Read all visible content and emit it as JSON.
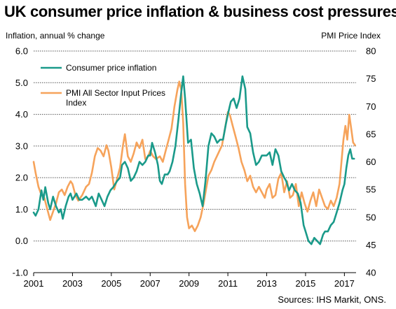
{
  "chart_data": {
    "type": "line",
    "title": "UK consumer price inflation & business cost pressures",
    "ylabel": "Inflation, annual % change",
    "ylabel_right": "PMI Price Index",
    "source": "Sources: IHS Markit, ONS.",
    "grid": true,
    "legend_position": "top-left",
    "x_ticks": [
      "2001",
      "2003",
      "2005",
      "2007",
      "2009",
      "2011",
      "2013",
      "2015",
      "2017"
    ],
    "y_ticks_left": [
      "6.0",
      "5.0",
      "4.0",
      "3.0",
      "2.0",
      "1.0",
      "0.0",
      "-1.0"
    ],
    "y_ticks_right": [
      "80",
      "75",
      "70",
      "65",
      "60",
      "55",
      "50",
      "45",
      "40"
    ],
    "ylim_left": [
      -1,
      6
    ],
    "ylim_right": [
      40,
      80
    ],
    "xlim": [
      2001.0,
      2017.6
    ],
    "series": [
      {
        "name": "Consumer price inflation",
        "axis": "left",
        "color": "#1a9a8a",
        "points": [
          [
            2001.0,
            0.9
          ],
          [
            2001.1,
            0.8
          ],
          [
            2001.25,
            1.0
          ],
          [
            2001.4,
            1.6
          ],
          [
            2001.5,
            1.3
          ],
          [
            2001.6,
            1.7
          ],
          [
            2001.75,
            1.2
          ],
          [
            2001.85,
            1.0
          ],
          [
            2002.0,
            1.4
          ],
          [
            2002.15,
            1.1
          ],
          [
            2002.3,
            0.9
          ],
          [
            2002.4,
            1.0
          ],
          [
            2002.5,
            0.7
          ],
          [
            2002.65,
            1.1
          ],
          [
            2002.8,
            1.4
          ],
          [
            2002.9,
            1.5
          ],
          [
            2003.0,
            1.3
          ],
          [
            2003.2,
            1.5
          ],
          [
            2003.35,
            1.3
          ],
          [
            2003.5,
            1.3
          ],
          [
            2003.7,
            1.4
          ],
          [
            2003.85,
            1.3
          ],
          [
            2004.0,
            1.4
          ],
          [
            2004.2,
            1.1
          ],
          [
            2004.35,
            1.5
          ],
          [
            2004.5,
            1.3
          ],
          [
            2004.65,
            1.1
          ],
          [
            2004.8,
            1.4
          ],
          [
            2004.95,
            1.6
          ],
          [
            2005.1,
            1.7
          ],
          [
            2005.3,
            1.9
          ],
          [
            2005.45,
            2.0
          ],
          [
            2005.55,
            2.4
          ],
          [
            2005.7,
            2.5
          ],
          [
            2005.85,
            2.3
          ],
          [
            2006.0,
            1.9
          ],
          [
            2006.15,
            2.0
          ],
          [
            2006.3,
            2.2
          ],
          [
            2006.45,
            2.5
          ],
          [
            2006.6,
            2.4
          ],
          [
            2006.75,
            2.5
          ],
          [
            2006.9,
            2.7
          ],
          [
            2007.0,
            2.7
          ],
          [
            2007.1,
            3.1
          ],
          [
            2007.25,
            2.8
          ],
          [
            2007.4,
            2.4
          ],
          [
            2007.5,
            1.9
          ],
          [
            2007.6,
            1.8
          ],
          [
            2007.75,
            2.1
          ],
          [
            2007.9,
            2.1
          ],
          [
            2008.0,
            2.2
          ],
          [
            2008.15,
            2.5
          ],
          [
            2008.3,
            3.0
          ],
          [
            2008.45,
            3.8
          ],
          [
            2008.6,
            4.7
          ],
          [
            2008.7,
            5.2
          ],
          [
            2008.8,
            4.5
          ],
          [
            2008.95,
            3.1
          ],
          [
            2009.1,
            3.2
          ],
          [
            2009.25,
            2.3
          ],
          [
            2009.4,
            1.8
          ],
          [
            2009.55,
            1.5
          ],
          [
            2009.7,
            1.1
          ],
          [
            2009.85,
            1.9
          ],
          [
            2010.0,
            3.0
          ],
          [
            2010.15,
            3.4
          ],
          [
            2010.3,
            3.3
          ],
          [
            2010.45,
            3.1
          ],
          [
            2010.6,
            3.2
          ],
          [
            2010.75,
            3.2
          ],
          [
            2010.9,
            3.7
          ],
          [
            2011.0,
            4.0
          ],
          [
            2011.15,
            4.4
          ],
          [
            2011.3,
            4.5
          ],
          [
            2011.45,
            4.2
          ],
          [
            2011.6,
            4.5
          ],
          [
            2011.75,
            5.2
          ],
          [
            2011.9,
            4.8
          ],
          [
            2012.0,
            3.6
          ],
          [
            2012.15,
            3.4
          ],
          [
            2012.3,
            2.8
          ],
          [
            2012.45,
            2.4
          ],
          [
            2012.6,
            2.5
          ],
          [
            2012.75,
            2.7
          ],
          [
            2012.9,
            2.7
          ],
          [
            2013.0,
            2.7
          ],
          [
            2013.15,
            2.8
          ],
          [
            2013.3,
            2.4
          ],
          [
            2013.45,
            2.9
          ],
          [
            2013.6,
            2.7
          ],
          [
            2013.75,
            2.2
          ],
          [
            2013.9,
            2.0
          ],
          [
            2014.0,
            1.9
          ],
          [
            2014.15,
            1.6
          ],
          [
            2014.3,
            1.8
          ],
          [
            2014.45,
            1.6
          ],
          [
            2014.6,
            1.5
          ],
          [
            2014.75,
            1.2
          ],
          [
            2014.9,
            0.5
          ],
          [
            2015.0,
            0.3
          ],
          [
            2015.15,
            0.0
          ],
          [
            2015.3,
            -0.1
          ],
          [
            2015.45,
            0.1
          ],
          [
            2015.6,
            0.0
          ],
          [
            2015.75,
            -0.1
          ],
          [
            2015.9,
            0.2
          ],
          [
            2016.0,
            0.3
          ],
          [
            2016.15,
            0.3
          ],
          [
            2016.3,
            0.5
          ],
          [
            2016.45,
            0.6
          ],
          [
            2016.6,
            0.9
          ],
          [
            2016.75,
            1.2
          ],
          [
            2016.9,
            1.6
          ],
          [
            2017.0,
            1.8
          ],
          [
            2017.1,
            2.3
          ],
          [
            2017.2,
            2.7
          ],
          [
            2017.3,
            2.9
          ],
          [
            2017.4,
            2.6
          ],
          [
            2017.5,
            2.6
          ]
        ]
      },
      {
        "name": "PMI All Sector Input Prices Index",
        "axis": "right",
        "color": "#f6a35b",
        "points": [
          [
            2001.0,
            60.0
          ],
          [
            2001.1,
            58.0
          ],
          [
            2001.25,
            55.5
          ],
          [
            2001.4,
            54.0
          ],
          [
            2001.55,
            53.5
          ],
          [
            2001.7,
            51.5
          ],
          [
            2001.85,
            49.5
          ],
          [
            2002.0,
            51.0
          ],
          [
            2002.15,
            52.5
          ],
          [
            2002.3,
            54.5
          ],
          [
            2002.45,
            55.0
          ],
          [
            2002.6,
            54.0
          ],
          [
            2002.75,
            55.5
          ],
          [
            2002.9,
            56.5
          ],
          [
            2003.0,
            56.0
          ],
          [
            2003.15,
            54.0
          ],
          [
            2003.3,
            53.0
          ],
          [
            2003.5,
            54.0
          ],
          [
            2003.7,
            55.5
          ],
          [
            2003.85,
            56.0
          ],
          [
            2004.0,
            58.0
          ],
          [
            2004.15,
            61.0
          ],
          [
            2004.3,
            62.5
          ],
          [
            2004.45,
            62.0
          ],
          [
            2004.6,
            61.0
          ],
          [
            2004.75,
            63.0
          ],
          [
            2004.85,
            62.0
          ],
          [
            2005.0,
            59.0
          ],
          [
            2005.15,
            55.0
          ],
          [
            2005.3,
            57.0
          ],
          [
            2005.45,
            59.0
          ],
          [
            2005.6,
            63.0
          ],
          [
            2005.7,
            65.0
          ],
          [
            2005.85,
            61.0
          ],
          [
            2006.0,
            60.0
          ],
          [
            2006.15,
            61.5
          ],
          [
            2006.3,
            63.5
          ],
          [
            2006.45,
            62.5
          ],
          [
            2006.6,
            64.0
          ],
          [
            2006.75,
            60.5
          ],
          [
            2006.9,
            61.0
          ],
          [
            2007.0,
            62.0
          ],
          [
            2007.15,
            61.0
          ],
          [
            2007.3,
            60.5
          ],
          [
            2007.5,
            61.0
          ],
          [
            2007.65,
            60.0
          ],
          [
            2007.8,
            62.0
          ],
          [
            2007.95,
            64.0
          ],
          [
            2008.1,
            66.0
          ],
          [
            2008.25,
            70.0
          ],
          [
            2008.4,
            73.0
          ],
          [
            2008.5,
            74.5
          ],
          [
            2008.6,
            73.0
          ],
          [
            2008.7,
            67.0
          ],
          [
            2008.8,
            56.0
          ],
          [
            2008.9,
            50.0
          ],
          [
            2009.0,
            48.0
          ],
          [
            2009.15,
            48.5
          ],
          [
            2009.3,
            47.5
          ],
          [
            2009.45,
            48.5
          ],
          [
            2009.6,
            50.0
          ],
          [
            2009.75,
            52.5
          ],
          [
            2009.9,
            55.5
          ],
          [
            2010.0,
            57.5
          ],
          [
            2010.15,
            58.5
          ],
          [
            2010.3,
            60.0
          ],
          [
            2010.5,
            61.5
          ],
          [
            2010.7,
            63.0
          ],
          [
            2010.85,
            66.0
          ],
          [
            2011.0,
            69.0
          ],
          [
            2011.1,
            68.5
          ],
          [
            2011.25,
            66.5
          ],
          [
            2011.4,
            64.5
          ],
          [
            2011.55,
            62.5
          ],
          [
            2011.7,
            60.0
          ],
          [
            2011.85,
            58.5
          ],
          [
            2012.0,
            56.5
          ],
          [
            2012.15,
            57.5
          ],
          [
            2012.3,
            55.5
          ],
          [
            2012.45,
            54.5
          ],
          [
            2012.6,
            55.5
          ],
          [
            2012.75,
            54.5
          ],
          [
            2012.9,
            53.5
          ],
          [
            2013.0,
            55.0
          ],
          [
            2013.15,
            56.0
          ],
          [
            2013.3,
            53.5
          ],
          [
            2013.45,
            54.0
          ],
          [
            2013.6,
            57.0
          ],
          [
            2013.75,
            58.0
          ],
          [
            2013.9,
            54.5
          ],
          [
            2014.05,
            56.5
          ],
          [
            2014.2,
            53.5
          ],
          [
            2014.35,
            54.0
          ],
          [
            2014.5,
            56.0
          ],
          [
            2014.65,
            52.0
          ],
          [
            2014.8,
            54.5
          ],
          [
            2014.95,
            52.5
          ],
          [
            2015.1,
            51.0
          ],
          [
            2015.25,
            53.0
          ],
          [
            2015.4,
            54.5
          ],
          [
            2015.55,
            52.0
          ],
          [
            2015.7,
            55.0
          ],
          [
            2015.85,
            53.5
          ],
          [
            2016.0,
            52.0
          ],
          [
            2016.15,
            51.5
          ],
          [
            2016.3,
            53.0
          ],
          [
            2016.45,
            52.0
          ],
          [
            2016.6,
            53.5
          ],
          [
            2016.75,
            56.0
          ],
          [
            2016.85,
            60.0
          ],
          [
            2016.95,
            64.0
          ],
          [
            2017.05,
            66.5
          ],
          [
            2017.15,
            64.0
          ],
          [
            2017.25,
            68.5
          ],
          [
            2017.35,
            66.0
          ],
          [
            2017.45,
            63.5
          ],
          [
            2017.55,
            63.0
          ]
        ]
      }
    ]
  }
}
